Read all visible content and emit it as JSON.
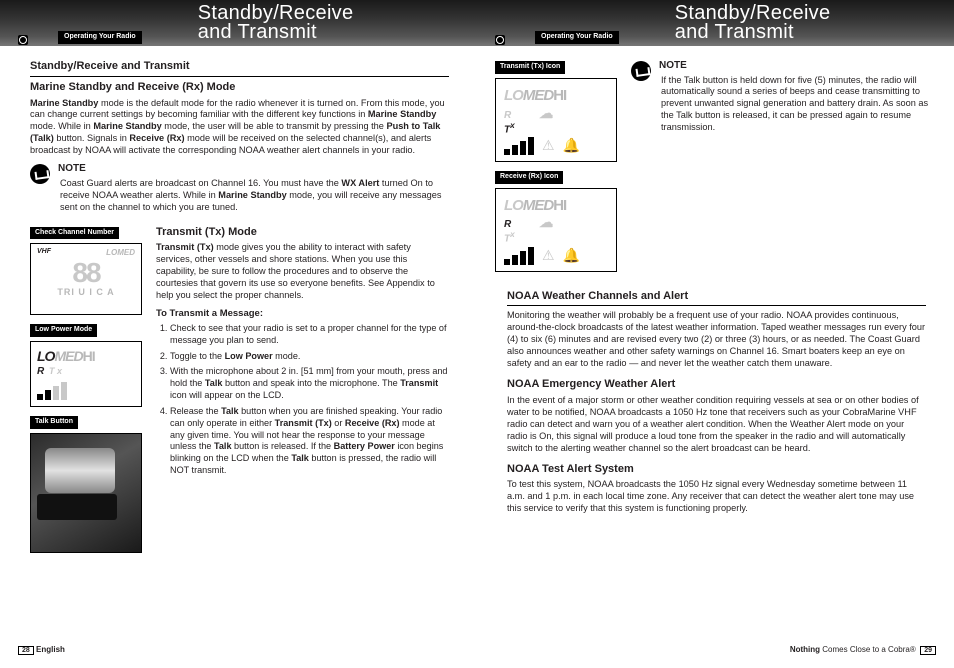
{
  "header": {
    "tab": "Operating Your Radio",
    "title_line1": "Standby/Receive",
    "title_line2": "and Transmit"
  },
  "left": {
    "section_heading": "Standby/Receive and Transmit",
    "sub_heading": "Marine Standby and Receive (Rx) Mode",
    "body_html": "<b>Marine Standby</b> mode is the default mode for the radio whenever it is turned on. From this mode, you can change current settings by becoming familiar with the different key functions in <b>Marine Standby</b> mode. While in <b>Marine Standby</b> mode, the user will be able to transmit by pressing the <b>Push to Talk (Talk)</b> button. Signals in <b>Receive (Rx)</b> mode will be received on the selected channel(s), and alerts broadcast by NOAA will activate the corresponding NOAA weather alert channels in your radio.",
    "note_label": "NOTE",
    "note_html": "Coast Guard alerts are broadcast on Channel 16. You must have the <b>WX Alert</b> turned On to receive NOAA weather alerts. While in <b>Marine Standby</b> mode, you will receive any messages sent on the channel to which you are tuned.",
    "sidebar": {
      "cap1": "Check Channel Number",
      "cap2": "Low Power Mode",
      "cap3": "Talk Button",
      "vhf": "VHF",
      "lomed_top": "LOMED",
      "big88": "88",
      "tri_strip": "TRI U I C A",
      "lo": "LO",
      "med": "MED",
      "hi": "HI",
      "r": "R",
      "tx": "T x"
    },
    "tx_heading": "Transmit (Tx) Mode",
    "tx_body_html": "<b>Transmit (Tx)</b> mode gives you the ability to interact with safety services, other vessels and shore stations. When you use this capability, be sure to follow the procedures and to observe the courtesies that govern its use so everyone benefits. See Appendix to help you select the proper channels.",
    "to_transmit": "To Transmit a Message:",
    "steps": [
      "Check to see that your radio is set to a proper channel for the type of message you plan to send.",
      "Toggle to the <b>Low Power</b> mode.",
      "With the microphone about 2 in. [51 mm] from your mouth, press and hold the <b>Talk</b> button and speak into the microphone. The <b>Transmit</b> icon will appear on the LCD.",
      "Release the <b>Talk</b> button when you are finished speaking. Your radio can only operate in either <b>Transmit (Tx)</b> or <b>Receive (Rx)</b> mode at any given time. You will not hear the response to your message unless the <b>Talk</b> button is released. If the <b>Battery Power</b> icon begins blinking on the LCD when the <b>Talk</b> button is pressed, the radio will NOT transmit."
    ]
  },
  "right": {
    "cap_tx": "Transmit (Tx) Icon",
    "cap_rx": "Receive (Rx) Icon",
    "lo": "LO",
    "med": "MED",
    "hi": "HI",
    "r": "R",
    "tx_dark": "T",
    "tx_x": "x",
    "note_label": "NOTE",
    "note_text": "If the Talk button is held down for five (5) minutes, the radio will automatically sound a series of beeps and cease transmitting to prevent unwanted signal generation and battery drain. As soon as the Talk button is released, it can be pressed again to resume transmission.",
    "noaa_heading": "NOAA Weather Channels and Alert",
    "noaa_body": "Monitoring the weather will probably be a frequent use of your radio. NOAA provides continuous, around-the-clock broadcasts of the latest weather information. Taped weather messages run every four (4) to six (6) minutes and are revised every two (2) or three (3) hours, or as needed. The Coast Guard also announces weather and other safety warnings on Channel 16. Smart boaters keep an eye on safety and an ear to the radio — and never let the weather catch them unaware.",
    "emerg_heading": "NOAA Emergency Weather Alert",
    "emerg_body": "In the event of a major storm or other weather condition requiring vessels at sea or on other bodies of water to be notified, NOAA broadcasts a 1050 Hz tone that receivers such as your CobraMarine VHF radio can detect and warn you of a weather alert condition. When the Weather Alert mode on your radio is On, this signal will produce a loud tone from the speaker in the radio and will automatically switch to the alerting weather channel so the alert broadcast can be heard.",
    "test_heading": "NOAA Test Alert System",
    "test_body": "To test this system, NOAA broadcasts the 1050 Hz signal every Wednesday sometime between 11 a.m. and 1 p.m. in each local time zone. Any receiver that can detect the weather alert tone may use this service to verify that this system is functioning properly."
  },
  "footer": {
    "left_pg": "28",
    "left_lang": "English",
    "right_tag_html": "<span class='nb'>Nothing</span> Comes Close to a Cobra®",
    "right_pg": "29"
  }
}
